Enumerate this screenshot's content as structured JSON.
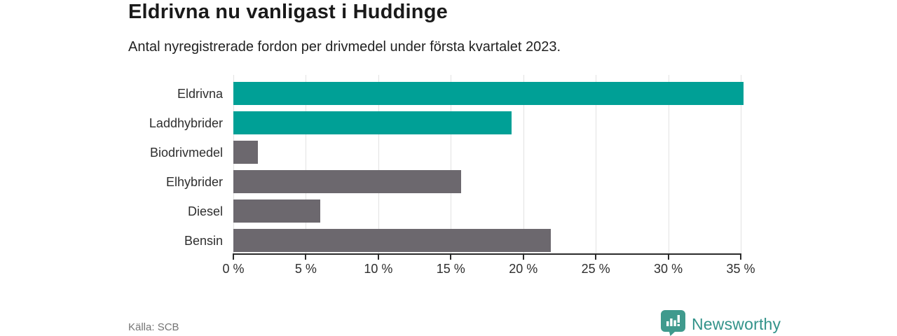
{
  "header": {
    "title": "Eldrivna nu vanligast i Huddinge",
    "subtitle": "Antal nyregistrerade fordon per drivmedel under första kvartalet 2023."
  },
  "chart_data": {
    "type": "bar",
    "orientation": "horizontal",
    "title": "Eldrivna nu vanligast i Huddinge",
    "subtitle": "Antal nyregistrerade fordon per drivmedel under första kvartalet 2023.",
    "categories": [
      "Eldrivna",
      "Laddhybrider",
      "Biodrivmedel",
      "Elhybrider",
      "Diesel",
      "Bensin"
    ],
    "values": [
      35.2,
      19.2,
      1.7,
      15.7,
      6.0,
      21.9
    ],
    "unit": "%",
    "bar_colors": [
      "#00a096",
      "#00a096",
      "#6c686e",
      "#6c686e",
      "#6c686e",
      "#6c686e"
    ],
    "xlim": [
      0,
      35
    ],
    "x_ticks": [
      0,
      5,
      10,
      15,
      20,
      25,
      30,
      35
    ],
    "x_tick_labels": [
      "0 %",
      "5 %",
      "10 %",
      "15 %",
      "20 %",
      "25 %",
      "30 %",
      "35 %"
    ],
    "grid": "vertical-gridlines-on",
    "legend": "none"
  },
  "footer": {
    "source": "Källa: SCB",
    "brand": "Newsworthy"
  },
  "colors": {
    "accent_teal": "#00a096",
    "bar_gray": "#6c686e",
    "logo_teal": "#3f9a8d",
    "brand_text_teal": "#33938a",
    "gridline": "#e2e2e2",
    "axis": "#2b2b2b"
  }
}
